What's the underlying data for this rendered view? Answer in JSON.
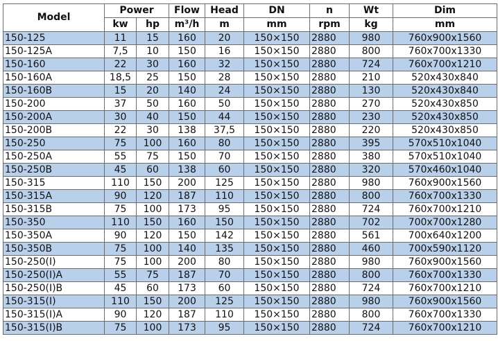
{
  "header": {
    "model": "Model",
    "power": "Power",
    "flow": "Flow",
    "head": "Head",
    "dn": "DN",
    "n": "n",
    "wt": "Wt",
    "dim": "Dim",
    "units": {
      "kw": "kw",
      "hp": "hp",
      "flow": "m³/h",
      "head": "m",
      "dn": "mm",
      "n": "rpm",
      "wt": "kg",
      "dim": "mm"
    }
  },
  "row_color": "#b9d0ea",
  "rows": [
    [
      "150-125",
      "11",
      "15",
      "160",
      "20",
      "150×150",
      "2880",
      "980",
      "760x900x1560"
    ],
    [
      "150-125A",
      "7,5",
      "10",
      "150",
      "16",
      "150×150",
      "2880",
      "800",
      "760x700x1330"
    ],
    [
      "150-160",
      "22",
      "30",
      "160",
      "32",
      "150×150",
      "2880",
      "724",
      "760x700x1210"
    ],
    [
      "150-160A",
      "18,5",
      "25",
      "150",
      "28",
      "150×150",
      "2880",
      "210",
      "520x430x840"
    ],
    [
      "150-160B",
      "15",
      "20",
      "140",
      "24",
      "150×150",
      "2880",
      "130",
      "520x430x840"
    ],
    [
      "150-200",
      "37",
      "50",
      "160",
      "50",
      "150×150",
      "2880",
      "270",
      "520x430x850"
    ],
    [
      "150-200A",
      "30",
      "40",
      "150",
      "44",
      "150×150",
      "2880",
      "230",
      "520x430x850"
    ],
    [
      "150-200B",
      "22",
      "30",
      "138",
      "37,5",
      "150×150",
      "2880",
      "220",
      "520x430x850"
    ],
    [
      "150-250",
      "75",
      "100",
      "160",
      "80",
      "150×150",
      "2880",
      "395",
      "570x510x1040"
    ],
    [
      "150-250A",
      "55",
      "75",
      "150",
      "70",
      "150×150",
      "2880",
      "380",
      "570x510x1040"
    ],
    [
      "150-250B",
      "45",
      "60",
      "138",
      "60",
      "150×150",
      "2880",
      "320",
      "570x460x1040"
    ],
    [
      "150-315",
      "110",
      "150",
      "200",
      "125",
      "150×150",
      "2880",
      "980",
      "760x900x1560"
    ],
    [
      "150-315A",
      "90",
      "120",
      "187",
      "110",
      "150×150",
      "2880",
      "800",
      "760x700x1330"
    ],
    [
      "150-315B",
      "75",
      "100",
      "173",
      "95",
      "150×150",
      "2880",
      "724",
      "760x700x1210"
    ],
    [
      "150-350",
      "110",
      "150",
      "160",
      "150",
      "150×150",
      "2880",
      "702",
      "700x700x1280"
    ],
    [
      "150-350A",
      "90",
      "120",
      "150",
      "142",
      "150×150",
      "2880",
      "561",
      "700x640x1200"
    ],
    [
      "150-350B",
      "75",
      "100",
      "140",
      "135",
      "150×150",
      "2880",
      "460",
      "700x590x1120"
    ],
    [
      "150-250(I)",
      "75",
      "100",
      "200",
      "80",
      "150×150",
      "2880",
      "980",
      "760x900x1560"
    ],
    [
      "150-250(I)A",
      "55",
      "75",
      "187",
      "70",
      "150×150",
      "2880",
      "800",
      "760x700x1330"
    ],
    [
      "150-250(I)B",
      "45",
      "60",
      "173",
      "60",
      "150×150",
      "2880",
      "724",
      "760x700x1210"
    ],
    [
      "150-315(I)",
      "110",
      "150",
      "200",
      "125",
      "150×150",
      "2880",
      "980",
      "760x900x1560"
    ],
    [
      "150-315(I)A",
      "90",
      "120",
      "187",
      "110",
      "150×150",
      "2880",
      "800",
      "760x700x1330"
    ],
    [
      "150-315(I)B",
      "75",
      "100",
      "173",
      "95",
      "150×150",
      "2880",
      "724",
      "760x700x1210"
    ]
  ]
}
